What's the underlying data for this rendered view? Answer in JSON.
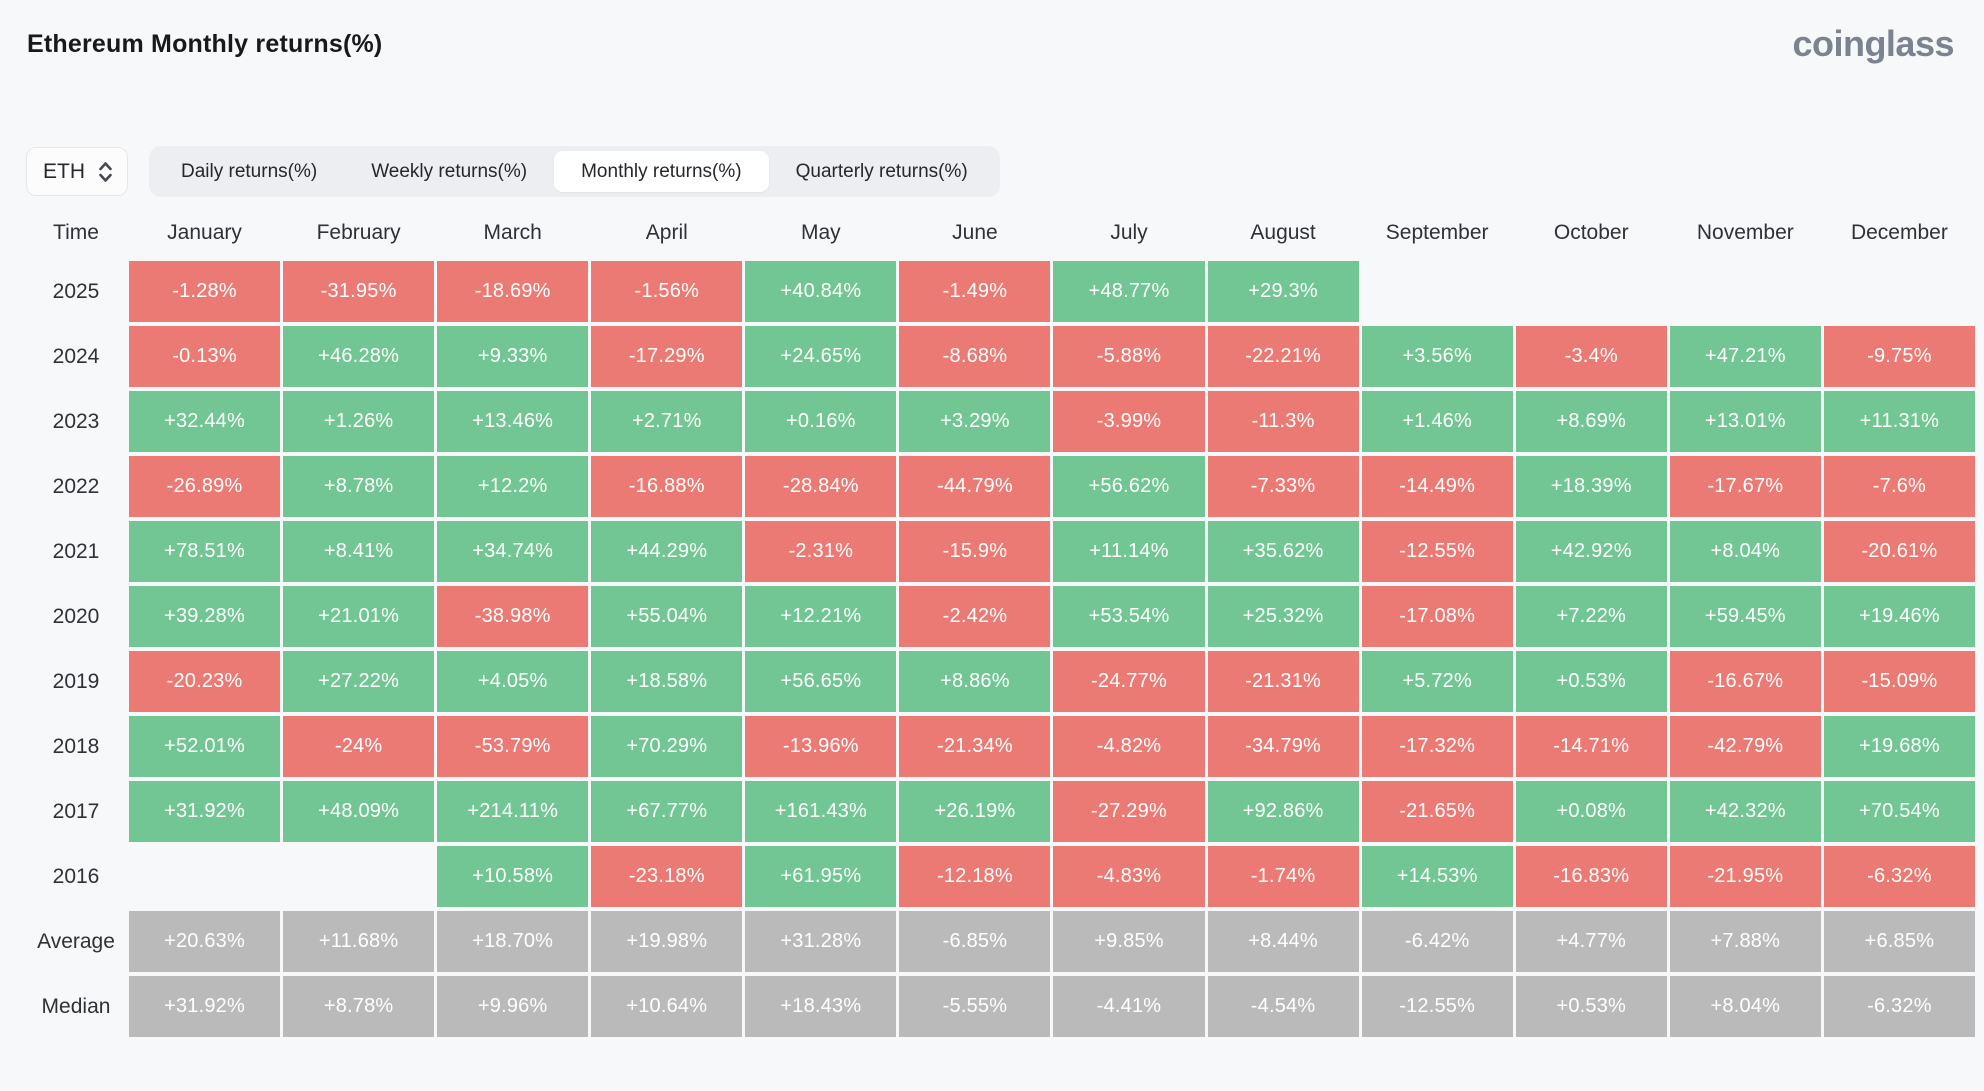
{
  "page": {
    "title": "Ethereum Monthly returns(%)",
    "brand": "coinglass"
  },
  "colors": {
    "positive_green": "#72c694",
    "negative_red": "#ec7a74",
    "summary_gray": "#bababa",
    "page_background": "#f7f8fa"
  },
  "controls": {
    "symbol": "ETH",
    "tabs": [
      {
        "label": "Daily returns(%)",
        "active": false
      },
      {
        "label": "Weekly returns(%)",
        "active": false
      },
      {
        "label": "Monthly returns(%)",
        "active": true
      },
      {
        "label": "Quarterly returns(%)",
        "active": false
      }
    ]
  },
  "table": {
    "corner": "Time",
    "months": [
      "January",
      "February",
      "March",
      "April",
      "May",
      "June",
      "July",
      "August",
      "September",
      "October",
      "November",
      "December"
    ],
    "rows": [
      {
        "label": "2025",
        "cells": [
          {
            "v": "-1.28%",
            "c": "r"
          },
          {
            "v": "-31.95%",
            "c": "r"
          },
          {
            "v": "-18.69%",
            "c": "r"
          },
          {
            "v": "-1.56%",
            "c": "r"
          },
          {
            "v": "+40.84%",
            "c": "g"
          },
          {
            "v": "-1.49%",
            "c": "r"
          },
          {
            "v": "+48.77%",
            "c": "g"
          },
          {
            "v": "+29.3%",
            "c": "g"
          },
          null,
          null,
          null,
          null
        ]
      },
      {
        "label": "2024",
        "cells": [
          {
            "v": "-0.13%",
            "c": "r"
          },
          {
            "v": "+46.28%",
            "c": "g"
          },
          {
            "v": "+9.33%",
            "c": "g"
          },
          {
            "v": "-17.29%",
            "c": "r"
          },
          {
            "v": "+24.65%",
            "c": "g"
          },
          {
            "v": "-8.68%",
            "c": "r"
          },
          {
            "v": "-5.88%",
            "c": "r"
          },
          {
            "v": "-22.21%",
            "c": "r"
          },
          {
            "v": "+3.56%",
            "c": "g"
          },
          {
            "v": "-3.4%",
            "c": "r"
          },
          {
            "v": "+47.21%",
            "c": "g"
          },
          {
            "v": "-9.75%",
            "c": "r"
          }
        ]
      },
      {
        "label": "2023",
        "cells": [
          {
            "v": "+32.44%",
            "c": "g"
          },
          {
            "v": "+1.26%",
            "c": "g"
          },
          {
            "v": "+13.46%",
            "c": "g"
          },
          {
            "v": "+2.71%",
            "c": "g"
          },
          {
            "v": "+0.16%",
            "c": "g"
          },
          {
            "v": "+3.29%",
            "c": "g"
          },
          {
            "v": "-3.99%",
            "c": "r"
          },
          {
            "v": "-11.3%",
            "c": "r"
          },
          {
            "v": "+1.46%",
            "c": "g"
          },
          {
            "v": "+8.69%",
            "c": "g"
          },
          {
            "v": "+13.01%",
            "c": "g"
          },
          {
            "v": "+11.31%",
            "c": "g"
          }
        ]
      },
      {
        "label": "2022",
        "cells": [
          {
            "v": "-26.89%",
            "c": "r"
          },
          {
            "v": "+8.78%",
            "c": "g"
          },
          {
            "v": "+12.2%",
            "c": "g"
          },
          {
            "v": "-16.88%",
            "c": "r"
          },
          {
            "v": "-28.84%",
            "c": "r"
          },
          {
            "v": "-44.79%",
            "c": "r"
          },
          {
            "v": "+56.62%",
            "c": "g"
          },
          {
            "v": "-7.33%",
            "c": "r"
          },
          {
            "v": "-14.49%",
            "c": "r"
          },
          {
            "v": "+18.39%",
            "c": "g"
          },
          {
            "v": "-17.67%",
            "c": "r"
          },
          {
            "v": "-7.6%",
            "c": "r"
          }
        ]
      },
      {
        "label": "2021",
        "cells": [
          {
            "v": "+78.51%",
            "c": "g"
          },
          {
            "v": "+8.41%",
            "c": "g"
          },
          {
            "v": "+34.74%",
            "c": "g"
          },
          {
            "v": "+44.29%",
            "c": "g"
          },
          {
            "v": "-2.31%",
            "c": "r"
          },
          {
            "v": "-15.9%",
            "c": "r"
          },
          {
            "v": "+11.14%",
            "c": "g"
          },
          {
            "v": "+35.62%",
            "c": "g"
          },
          {
            "v": "-12.55%",
            "c": "r"
          },
          {
            "v": "+42.92%",
            "c": "g"
          },
          {
            "v": "+8.04%",
            "c": "g"
          },
          {
            "v": "-20.61%",
            "c": "r"
          }
        ]
      },
      {
        "label": "2020",
        "cells": [
          {
            "v": "+39.28%",
            "c": "g"
          },
          {
            "v": "+21.01%",
            "c": "g"
          },
          {
            "v": "-38.98%",
            "c": "r"
          },
          {
            "v": "+55.04%",
            "c": "g"
          },
          {
            "v": "+12.21%",
            "c": "g"
          },
          {
            "v": "-2.42%",
            "c": "r"
          },
          {
            "v": "+53.54%",
            "c": "g"
          },
          {
            "v": "+25.32%",
            "c": "g"
          },
          {
            "v": "-17.08%",
            "c": "r"
          },
          {
            "v": "+7.22%",
            "c": "g"
          },
          {
            "v": "+59.45%",
            "c": "g"
          },
          {
            "v": "+19.46%",
            "c": "g"
          }
        ]
      },
      {
        "label": "2019",
        "cells": [
          {
            "v": "-20.23%",
            "c": "r"
          },
          {
            "v": "+27.22%",
            "c": "g"
          },
          {
            "v": "+4.05%",
            "c": "g"
          },
          {
            "v": "+18.58%",
            "c": "g"
          },
          {
            "v": "+56.65%",
            "c": "g"
          },
          {
            "v": "+8.86%",
            "c": "g"
          },
          {
            "v": "-24.77%",
            "c": "r"
          },
          {
            "v": "-21.31%",
            "c": "r"
          },
          {
            "v": "+5.72%",
            "c": "g"
          },
          {
            "v": "+0.53%",
            "c": "g"
          },
          {
            "v": "-16.67%",
            "c": "r"
          },
          {
            "v": "-15.09%",
            "c": "r"
          }
        ]
      },
      {
        "label": "2018",
        "cells": [
          {
            "v": "+52.01%",
            "c": "g"
          },
          {
            "v": "-24%",
            "c": "r"
          },
          {
            "v": "-53.79%",
            "c": "r"
          },
          {
            "v": "+70.29%",
            "c": "g"
          },
          {
            "v": "-13.96%",
            "c": "r"
          },
          {
            "v": "-21.34%",
            "c": "r"
          },
          {
            "v": "-4.82%",
            "c": "r"
          },
          {
            "v": "-34.79%",
            "c": "r"
          },
          {
            "v": "-17.32%",
            "c": "r"
          },
          {
            "v": "-14.71%",
            "c": "r"
          },
          {
            "v": "-42.79%",
            "c": "r"
          },
          {
            "v": "+19.68%",
            "c": "g"
          }
        ]
      },
      {
        "label": "2017",
        "cells": [
          {
            "v": "+31.92%",
            "c": "g"
          },
          {
            "v": "+48.09%",
            "c": "g"
          },
          {
            "v": "+214.11%",
            "c": "g"
          },
          {
            "v": "+67.77%",
            "c": "g"
          },
          {
            "v": "+161.43%",
            "c": "g"
          },
          {
            "v": "+26.19%",
            "c": "g"
          },
          {
            "v": "-27.29%",
            "c": "r"
          },
          {
            "v": "+92.86%",
            "c": "g"
          },
          {
            "v": "-21.65%",
            "c": "r"
          },
          {
            "v": "+0.08%",
            "c": "g"
          },
          {
            "v": "+42.32%",
            "c": "g"
          },
          {
            "v": "+70.54%",
            "c": "g"
          }
        ]
      },
      {
        "label": "2016",
        "cells": [
          null,
          null,
          {
            "v": "+10.58%",
            "c": "g"
          },
          {
            "v": "-23.18%",
            "c": "r"
          },
          {
            "v": "+61.95%",
            "c": "g"
          },
          {
            "v": "-12.18%",
            "c": "r"
          },
          {
            "v": "-4.83%",
            "c": "r"
          },
          {
            "v": "-1.74%",
            "c": "r"
          },
          {
            "v": "+14.53%",
            "c": "g"
          },
          {
            "v": "-16.83%",
            "c": "r"
          },
          {
            "v": "-21.95%",
            "c": "r"
          },
          {
            "v": "-6.32%",
            "c": "r"
          }
        ]
      },
      {
        "label": "Average",
        "cells": [
          {
            "v": "+20.63%",
            "c": "n"
          },
          {
            "v": "+11.68%",
            "c": "n"
          },
          {
            "v": "+18.70%",
            "c": "n"
          },
          {
            "v": "+19.98%",
            "c": "n"
          },
          {
            "v": "+31.28%",
            "c": "n"
          },
          {
            "v": "-6.85%",
            "c": "n"
          },
          {
            "v": "+9.85%",
            "c": "n"
          },
          {
            "v": "+8.44%",
            "c": "n"
          },
          {
            "v": "-6.42%",
            "c": "n"
          },
          {
            "v": "+4.77%",
            "c": "n"
          },
          {
            "v": "+7.88%",
            "c": "n"
          },
          {
            "v": "+6.85%",
            "c": "n"
          }
        ]
      },
      {
        "label": "Median",
        "cells": [
          {
            "v": "+31.92%",
            "c": "n"
          },
          {
            "v": "+8.78%",
            "c": "n"
          },
          {
            "v": "+9.96%",
            "c": "n"
          },
          {
            "v": "+10.64%",
            "c": "n"
          },
          {
            "v": "+18.43%",
            "c": "n"
          },
          {
            "v": "-5.55%",
            "c": "n"
          },
          {
            "v": "-4.41%",
            "c": "n"
          },
          {
            "v": "-4.54%",
            "c": "n"
          },
          {
            "v": "-12.55%",
            "c": "n"
          },
          {
            "v": "+0.53%",
            "c": "n"
          },
          {
            "v": "+8.04%",
            "c": "n"
          },
          {
            "v": "-6.32%",
            "c": "n"
          }
        ]
      }
    ]
  }
}
